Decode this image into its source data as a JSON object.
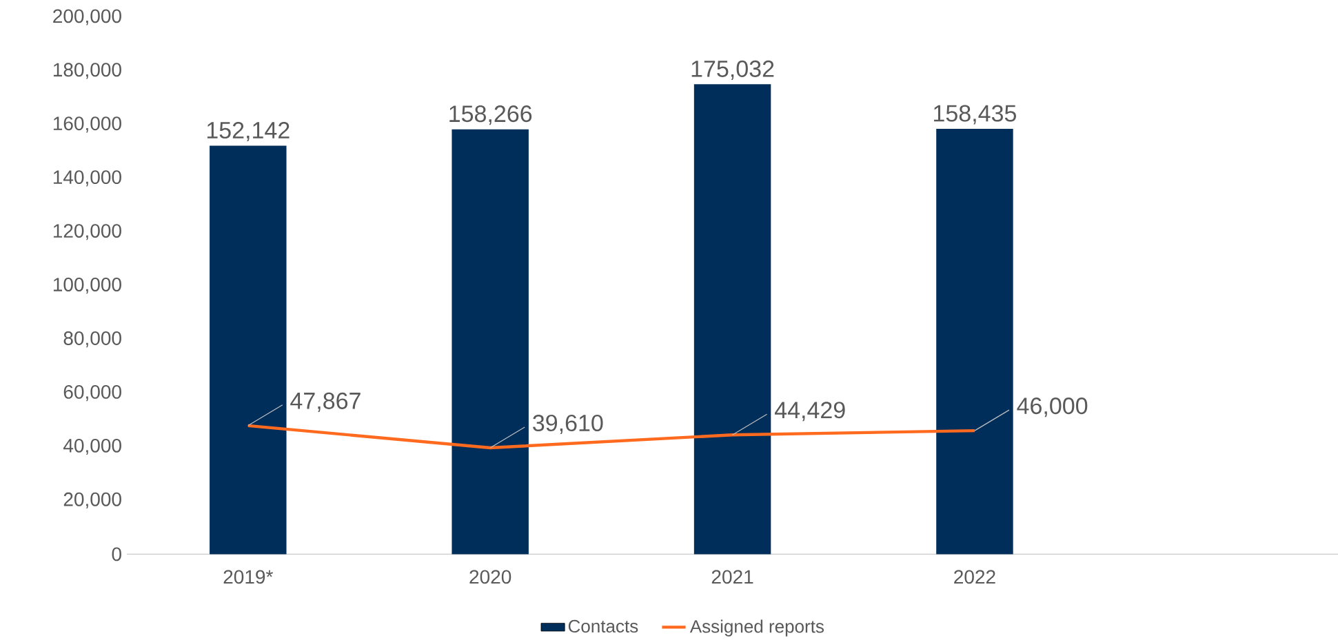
{
  "chart_data": {
    "type": "bar",
    "categories": [
      "2019*",
      "2020",
      "2021",
      "2022",
      null
    ],
    "ylim": [
      0,
      200000
    ],
    "yticks": [
      {
        "value": 0,
        "label": "0"
      },
      {
        "value": 20000,
        "label": "20,000"
      },
      {
        "value": 40000,
        "label": "40,000"
      },
      {
        "value": 60000,
        "label": "60,000"
      },
      {
        "value": 80000,
        "label": "80,000"
      },
      {
        "value": 100000,
        "label": "100,000"
      },
      {
        "value": 120000,
        "label": "120,000"
      },
      {
        "value": 140000,
        "label": "140,000"
      },
      {
        "value": 160000,
        "label": "160,000"
      },
      {
        "value": 180000,
        "label": "180,000"
      },
      {
        "value": 200000,
        "label": "200,000"
      }
    ],
    "series": [
      {
        "name": "Contacts",
        "color": "#002e5b",
        "values": [
          152142,
          158266,
          175032,
          158435,
          null
        ],
        "value_labels": [
          "152,142",
          "158,266",
          "175,032",
          "158,435",
          null
        ]
      },
      {
        "name": "Assigned reports",
        "type": "line",
        "color": "#ff6a1f",
        "values": [
          47867,
          39610,
          44429,
          46000,
          null
        ],
        "value_labels": [
          "47,867",
          "39,610",
          "44,429",
          "46,000",
          null
        ]
      }
    ],
    "legend": "bottom"
  }
}
